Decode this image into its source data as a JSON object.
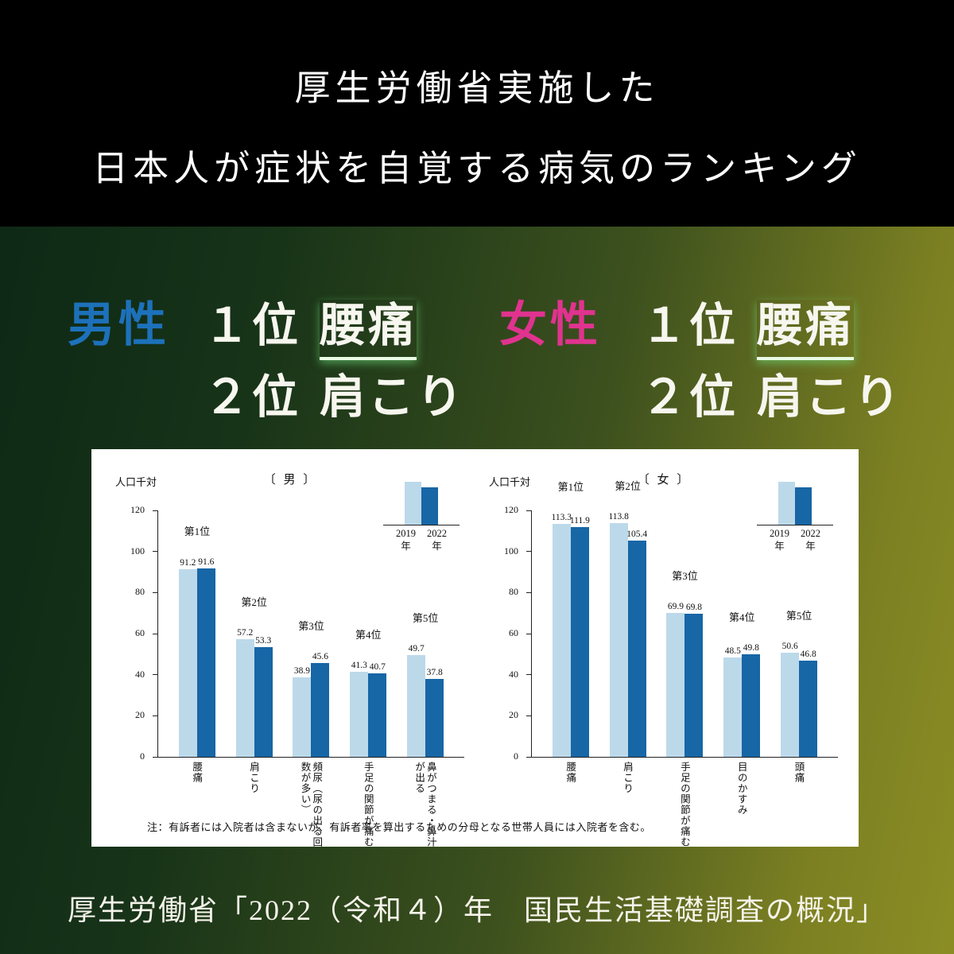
{
  "header": {
    "title_line1": "厚生労働省実施した",
    "title_line2": "日本人が症状を自覚する病気のランキング"
  },
  "rankings": {
    "male": {
      "group_label": "男性",
      "rank1_no": "１位",
      "rank1_label": "腰痛",
      "rank2_no": "２位",
      "rank2_label": "肩こり"
    },
    "female": {
      "group_label": "女性",
      "rank1_no": "１位",
      "rank1_label": "腰痛",
      "rank2_no": "２位",
      "rank2_label": "肩こり"
    }
  },
  "colors": {
    "male_accent": "#1d71ba",
    "female_accent": "#e0338f",
    "bar_2019": "#bcd9ea",
    "bar_2022": "#1766a6"
  },
  "chart_data": [
    {
      "type": "bar",
      "title": "〔 男 〕",
      "ylabel": "人口千対",
      "ylim": [
        0,
        120
      ],
      "yticks": [
        0,
        20,
        40,
        60,
        80,
        100,
        120
      ],
      "grid": false,
      "legend_position": "top-right",
      "categories": [
        "腰痛",
        "肩こり",
        "頻尿（尿の出る回数が多い）",
        "手足の関節が痛む",
        "鼻がつまる・鼻汁が出る"
      ],
      "rank_labels": [
        "第1位",
        "第2位",
        "第3位",
        "第4位",
        "第5位"
      ],
      "series": [
        {
          "name": "2019年",
          "values": [
            91.2,
            57.2,
            38.9,
            41.3,
            49.7
          ]
        },
        {
          "name": "2022年",
          "values": [
            91.6,
            53.3,
            45.6,
            40.7,
            37.8
          ]
        }
      ]
    },
    {
      "type": "bar",
      "title": "〔 女 〕",
      "ylabel": "人口千対",
      "ylim": [
        0,
        120
      ],
      "yticks": [
        0,
        20,
        40,
        60,
        80,
        100,
        120
      ],
      "grid": false,
      "legend_position": "top-right",
      "categories": [
        "腰痛",
        "肩こり",
        "手足の関節が痛む",
        "目のかすみ",
        "頭痛"
      ],
      "rank_labels": [
        "第1位",
        "第2位",
        "第3位",
        "第4位",
        "第5位"
      ],
      "series": [
        {
          "name": "2019年",
          "values": [
            113.3,
            113.8,
            69.9,
            48.5,
            50.6
          ]
        },
        {
          "name": "2022年",
          "values": [
            111.9,
            105.4,
            69.8,
            49.8,
            46.8
          ]
        }
      ]
    }
  ],
  "chart_note": "注：有訴者には入院者は含まないが、有訴者率を算出するための分母となる世帯人員には入院者を含む。",
  "source": "厚生労働省「2022（令和４）年　国民生活基礎調査の概況」"
}
